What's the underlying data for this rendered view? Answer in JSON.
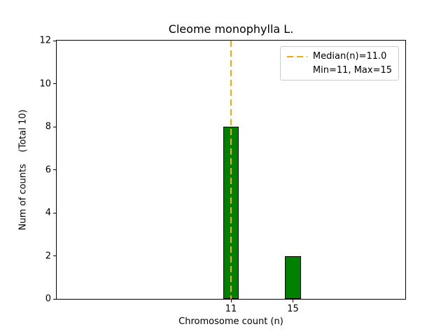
{
  "chart_data": {
    "type": "bar",
    "title": "Cleome monophylla L.",
    "xlabel": "Chromosome count (n)",
    "ylabel": "Num of counts    (Total 10)",
    "total_counts": 10,
    "x": [
      11,
      15
    ],
    "values": [
      8,
      2
    ],
    "bar_width": 1,
    "bar_color": "#008000",
    "bar_edge_color": "#000000",
    "xlim": [
      -0.25,
      22.25
    ],
    "ylim": [
      0,
      12
    ],
    "xticks": [
      11,
      15
    ],
    "yticks": [
      0,
      2,
      4,
      6,
      8,
      10,
      12
    ],
    "grid": false,
    "median_line": {
      "x": 11,
      "color": "#FFA500",
      "style": "dashed",
      "label": "Median(n)=11.0"
    },
    "legend": {
      "position": "upper right",
      "entries": [
        {
          "handle": "dashed-line",
          "color": "#FFA500",
          "label": "Median(n)=11.0"
        },
        {
          "handle": "none",
          "label": "Min=11, Max=15"
        }
      ]
    }
  }
}
